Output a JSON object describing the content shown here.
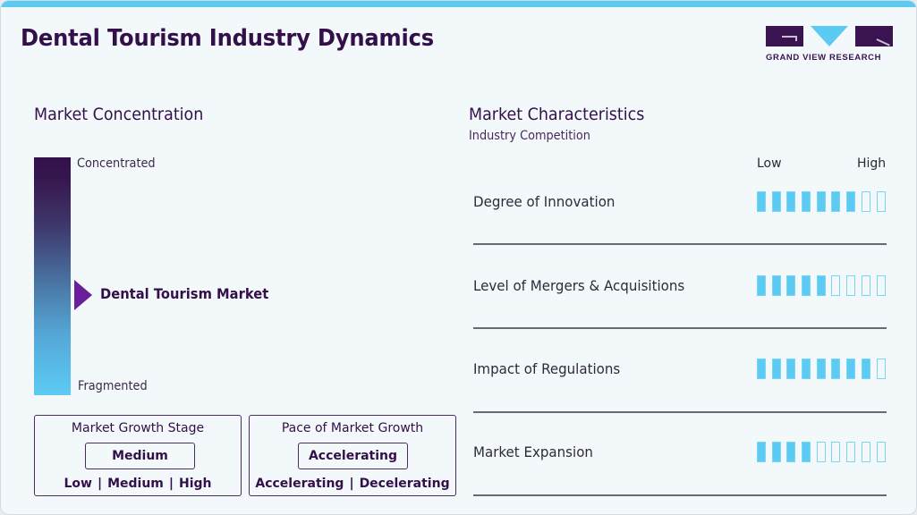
{
  "header": {
    "title": "Dental Tourism Industry Dynamics",
    "brand": "GRAND VIEW RESEARCH"
  },
  "concentration": {
    "title": "Market Concentration",
    "top_label": "Concentrated",
    "bottom_label": "Fragmented",
    "marker_label": "Dental Tourism Market",
    "marker_position_pct": 58,
    "gradient_colors": [
      "#34104a",
      "#5ccbf4"
    ],
    "pointer_color": "#6a1f9a"
  },
  "growth_stage": {
    "title": "Market Growth Stage",
    "selected": "Medium",
    "options": [
      "Low",
      "Medium",
      "High"
    ]
  },
  "growth_pace": {
    "title": "Pace of Market Growth",
    "selected": "Accelerating",
    "options": [
      "Accelerating",
      "Decelerating"
    ]
  },
  "characteristics": {
    "title": "Market Characteristics",
    "subtitle": "Industry Competition",
    "scale_low": "Low",
    "scale_high": "High",
    "max_score": 9,
    "accent_color": "#5ccbf4",
    "items": [
      {
        "label": "Degree of Innovation",
        "score": 7
      },
      {
        "label": "Level of Mergers & Acquisitions",
        "score": 5
      },
      {
        "label": "Impact of Regulations",
        "score": 8
      },
      {
        "label": "Market Expansion",
        "score": 4
      }
    ]
  }
}
